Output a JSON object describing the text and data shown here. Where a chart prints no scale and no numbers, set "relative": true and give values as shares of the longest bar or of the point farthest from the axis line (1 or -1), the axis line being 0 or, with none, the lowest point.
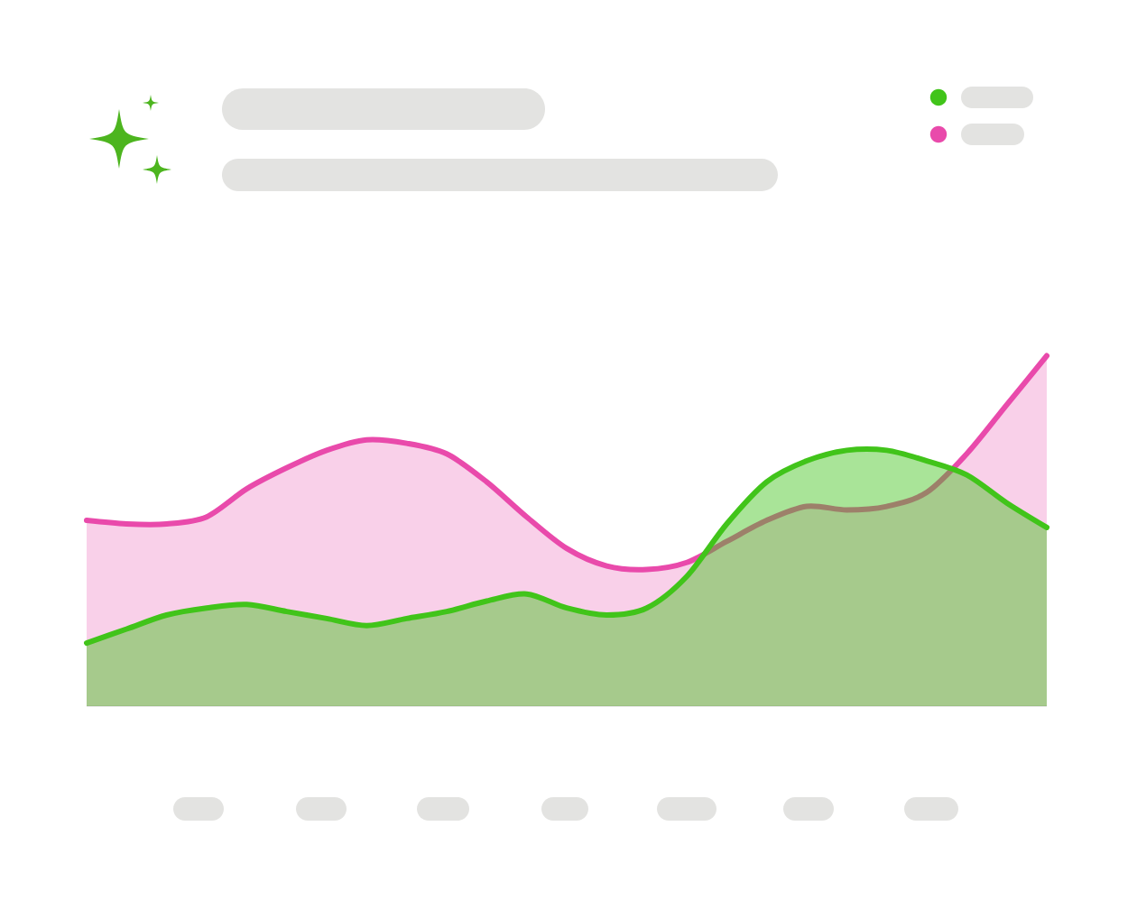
{
  "chart_data": {
    "type": "area",
    "relative": true,
    "categories": [
      null,
      null,
      null,
      null,
      null,
      null,
      null,
      null,
      null,
      null,
      null,
      null,
      null,
      null,
      null,
      null,
      null,
      null,
      null,
      null,
      null,
      null,
      null,
      null,
      null
    ],
    "series": [
      {
        "color": "#41c41a",
        "values": [
          0.18,
          0.22,
          0.26,
          0.28,
          0.29,
          0.27,
          0.25,
          0.23,
          0.25,
          0.27,
          0.3,
          0.32,
          0.28,
          0.26,
          0.28,
          0.37,
          0.52,
          0.64,
          0.7,
          0.73,
          0.73,
          0.7,
          0.66,
          0.58,
          0.51
        ]
      },
      {
        "color": "#e94aab",
        "values": [
          0.53,
          0.52,
          0.52,
          0.54,
          0.62,
          0.68,
          0.73,
          0.76,
          0.75,
          0.72,
          0.64,
          0.54,
          0.45,
          0.4,
          0.39,
          0.41,
          0.47,
          0.53,
          0.57,
          0.56,
          0.57,
          0.61,
          0.72,
          0.86,
          1
        ]
      }
    ]
  }
}
